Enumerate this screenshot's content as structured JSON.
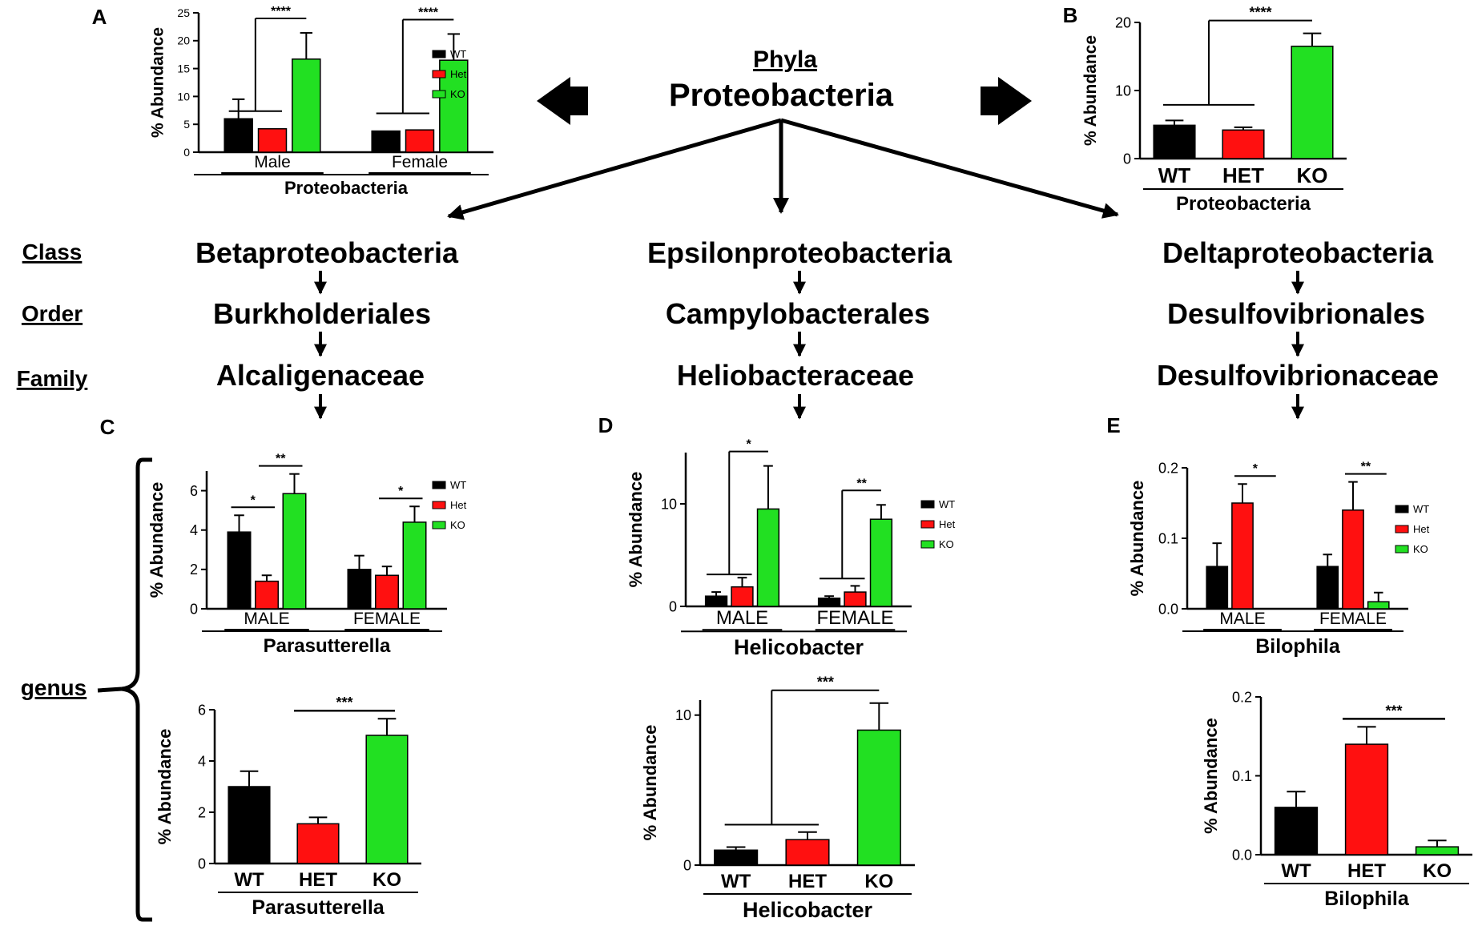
{
  "phylum": {
    "heading": "Phyla",
    "name": "Proteobacteria"
  },
  "rank_labels": {
    "class": "Class",
    "order": "Order",
    "family": "Family",
    "genus": "genus"
  },
  "lineages": [
    {
      "class": "Betaproteobacteria",
      "order": "Burkholderiales",
      "family": "Alcaligenaceae"
    },
    {
      "class": "Epsilonproteobacteria",
      "order": "Campylobacterales",
      "family": "Heliobacteraceae"
    },
    {
      "class": "Deltaproteobacteria",
      "order": "Desulfovibrionales",
      "family": "Desulfovibrionaceae"
    }
  ],
  "colors": {
    "WT": "#000000",
    "Het": "#ff1010",
    "KO": "#22e022"
  },
  "chart_data": [
    {
      "id": "A",
      "panel_label": "A",
      "type": "bar",
      "kind": "grouped",
      "ylabel": "% Abundance",
      "ylim": [
        0,
        25
      ],
      "yticks": [
        0,
        5,
        10,
        15,
        20,
        25
      ],
      "yticklabels": [
        "0",
        "5",
        "10",
        "15",
        "20",
        "25"
      ],
      "groups": [
        "Male",
        "Female"
      ],
      "xlabel": "Proteobacteria",
      "legend": [
        "WT",
        "Het",
        "KO"
      ],
      "series": [
        {
          "name": "WT",
          "values": [
            6.0,
            3.8
          ],
          "errors": [
            3.5,
            0
          ]
        },
        {
          "name": "Het",
          "values": [
            4.2,
            4.0
          ],
          "errors": [
            0,
            0
          ]
        },
        {
          "name": "KO",
          "values": [
            16.7,
            16.5
          ],
          "errors": [
            4.7,
            4.7
          ]
        }
      ],
      "significance": [
        {
          "group": 0,
          "label": "****",
          "type": "bracket"
        },
        {
          "group": 1,
          "label": "****",
          "type": "bracket"
        }
      ]
    },
    {
      "id": "B",
      "panel_label": "B",
      "type": "bar",
      "kind": "simple",
      "ylabel": "% Abundance",
      "ylim": [
        0,
        20
      ],
      "yticks": [
        0,
        10,
        20
      ],
      "yticklabels": [
        "0",
        "10",
        "20"
      ],
      "categories": [
        "WT",
        "HET",
        "KO"
      ],
      "xlabel": "Proteobacteria",
      "values": [
        4.9,
        4.2,
        16.5
      ],
      "errors": [
        0.7,
        0.4,
        1.9
      ],
      "significance": [
        {
          "label": "****",
          "type": "bracket"
        }
      ]
    },
    {
      "id": "C1",
      "panel_label": "C",
      "type": "bar",
      "kind": "grouped",
      "ylabel": "% Abundance",
      "ylim": [
        0,
        7
      ],
      "yticks": [
        0,
        2,
        4,
        6
      ],
      "yticklabels": [
        "0",
        "2",
        "4",
        "6"
      ],
      "groups": [
        "MALE",
        "FEMALE"
      ],
      "xlabel": "Parasutterella",
      "legend": [
        "WT",
        "Het",
        "KO"
      ],
      "series": [
        {
          "name": "WT",
          "values": [
            3.9,
            2.0
          ],
          "errors": [
            0.85,
            0.7
          ]
        },
        {
          "name": "Het",
          "values": [
            1.4,
            1.7
          ],
          "errors": [
            0.3,
            0.45
          ]
        },
        {
          "name": "KO",
          "values": [
            5.85,
            4.4
          ],
          "errors": [
            1.0,
            0.8
          ]
        }
      ],
      "significance": [
        {
          "group": 0,
          "label": "*",
          "type": "line",
          "from": 0,
          "to": 1
        },
        {
          "group": 0,
          "label": "**",
          "type": "line",
          "from": 1,
          "to": 2
        },
        {
          "group": 1,
          "label": "*",
          "type": "line",
          "from": 1,
          "to": 2
        }
      ]
    },
    {
      "id": "C2",
      "panel_label": "",
      "type": "bar",
      "kind": "simple",
      "ylabel": "% Abundance",
      "ylim": [
        0,
        6
      ],
      "yticks": [
        0,
        2,
        4,
        6
      ],
      "yticklabels": [
        "0",
        "2",
        "4",
        "6"
      ],
      "categories": [
        "WT",
        "HET",
        "KO"
      ],
      "xlabel": "Parasutterella",
      "values": [
        3.0,
        1.55,
        5.0
      ],
      "errors": [
        0.6,
        0.25,
        0.65
      ],
      "significance": [
        {
          "label": "***",
          "type": "line",
          "from": 1,
          "to": 2
        }
      ]
    },
    {
      "id": "D1",
      "panel_label": "D",
      "type": "bar",
      "kind": "grouped",
      "ylabel": "% Abundance",
      "ylim": [
        0,
        15
      ],
      "yticks": [
        0,
        10
      ],
      "yticklabels": [
        "0",
        "10"
      ],
      "groups": [
        "MALE",
        "FEMALE"
      ],
      "xlabel": "Helicobacter",
      "legend": [
        "WT",
        "Het",
        "KO"
      ],
      "series": [
        {
          "name": "WT",
          "values": [
            1.0,
            0.8
          ],
          "errors": [
            0.4,
            0.2
          ]
        },
        {
          "name": "Het",
          "values": [
            1.9,
            1.4
          ],
          "errors": [
            0.9,
            0.6
          ]
        },
        {
          "name": "KO",
          "values": [
            9.5,
            8.5
          ],
          "errors": [
            4.2,
            1.4
          ]
        }
      ],
      "significance": [
        {
          "group": 0,
          "label": "*",
          "type": "bracket"
        },
        {
          "group": 1,
          "label": "**",
          "type": "bracket"
        }
      ]
    },
    {
      "id": "D2",
      "panel_label": "",
      "type": "bar",
      "kind": "simple",
      "ylabel": "% Abundance",
      "ylim": [
        0,
        11
      ],
      "yticks": [
        0,
        10
      ],
      "yticklabels": [
        "0",
        "10"
      ],
      "categories": [
        "WT",
        "HET",
        "KO"
      ],
      "xlabel": "Helicobacter",
      "values": [
        1.0,
        1.7,
        9.0
      ],
      "errors": [
        0.2,
        0.5,
        1.8
      ],
      "significance": [
        {
          "label": "***",
          "type": "bracket"
        }
      ]
    },
    {
      "id": "E1",
      "panel_label": "E",
      "type": "bar",
      "kind": "grouped",
      "ylabel": "% Abundance",
      "ylim": [
        0,
        0.2
      ],
      "yticks": [
        0,
        0.1,
        0.2
      ],
      "yticklabels": [
        "0.0",
        "0.1",
        "0.2"
      ],
      "groups": [
        "MALE",
        "FEMALE"
      ],
      "xlabel": "Bilophila",
      "legend": [
        "WT",
        "Het",
        "KO"
      ],
      "series": [
        {
          "name": "WT",
          "values": [
            0.06,
            0.06
          ],
          "errors": [
            0.033,
            0.017
          ]
        },
        {
          "name": "Het",
          "values": [
            0.15,
            0.14
          ],
          "errors": [
            0.027,
            0.04
          ]
        },
        {
          "name": "KO",
          "values": [
            0.0,
            0.01
          ],
          "errors": [
            0,
            0.013
          ]
        }
      ],
      "significance": [
        {
          "group": 0,
          "label": "*",
          "type": "line",
          "from": 1,
          "to": 2
        },
        {
          "group": 1,
          "label": "**",
          "type": "line",
          "from": 1,
          "to": 2
        }
      ]
    },
    {
      "id": "E2",
      "panel_label": "",
      "type": "bar",
      "kind": "simple",
      "ylabel": "% Abundance",
      "ylim": [
        0,
        0.2
      ],
      "yticks": [
        0,
        0.1,
        0.2
      ],
      "yticklabels": [
        "0.0",
        "0.1",
        "0.2"
      ],
      "categories": [
        "WT",
        "HET",
        "KO"
      ],
      "xlabel": "Bilophila",
      "values": [
        0.06,
        0.14,
        0.01
      ],
      "errors": [
        0.02,
        0.022,
        0.008
      ],
      "significance": [
        {
          "label": "***",
          "type": "line",
          "from": 1,
          "to": 2
        }
      ]
    }
  ]
}
